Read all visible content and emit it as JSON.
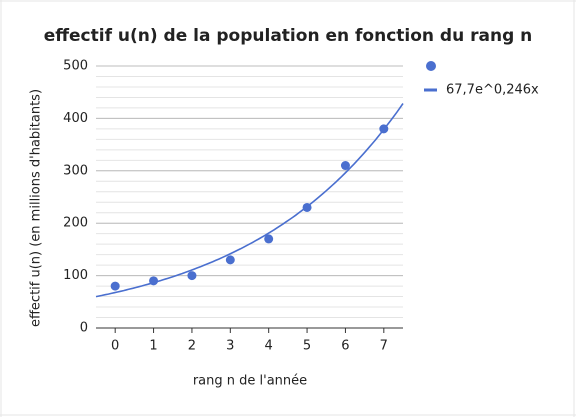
{
  "chart_data": {
    "type": "scatter",
    "title": "effectif u(n) de la population en fonction du rang n",
    "x_label": "rang n de l'année",
    "y_label": "effectif u(n) (en millions d'habitants)",
    "series": [
      {
        "color": "#4a6fcf",
        "x": [
          0,
          1,
          2,
          3,
          4,
          5,
          6,
          7
        ],
        "values": [
          80,
          90,
          100,
          130,
          170,
          230,
          310,
          380
        ]
      }
    ],
    "trendline": {
      "name": "67,7e^0,246x",
      "color": "#4a6fcf",
      "a": 67.7,
      "b": 0.246
    },
    "xlim": [
      -0.5,
      7.5
    ],
    "xticks": [
      0,
      1,
      2,
      3,
      4,
      5,
      6,
      7
    ],
    "ylim": [
      0,
      500
    ],
    "yticks": [
      0,
      100,
      200,
      300,
      400,
      500
    ],
    "grid": true,
    "minor_grid_step": 20,
    "legend": "right"
  }
}
